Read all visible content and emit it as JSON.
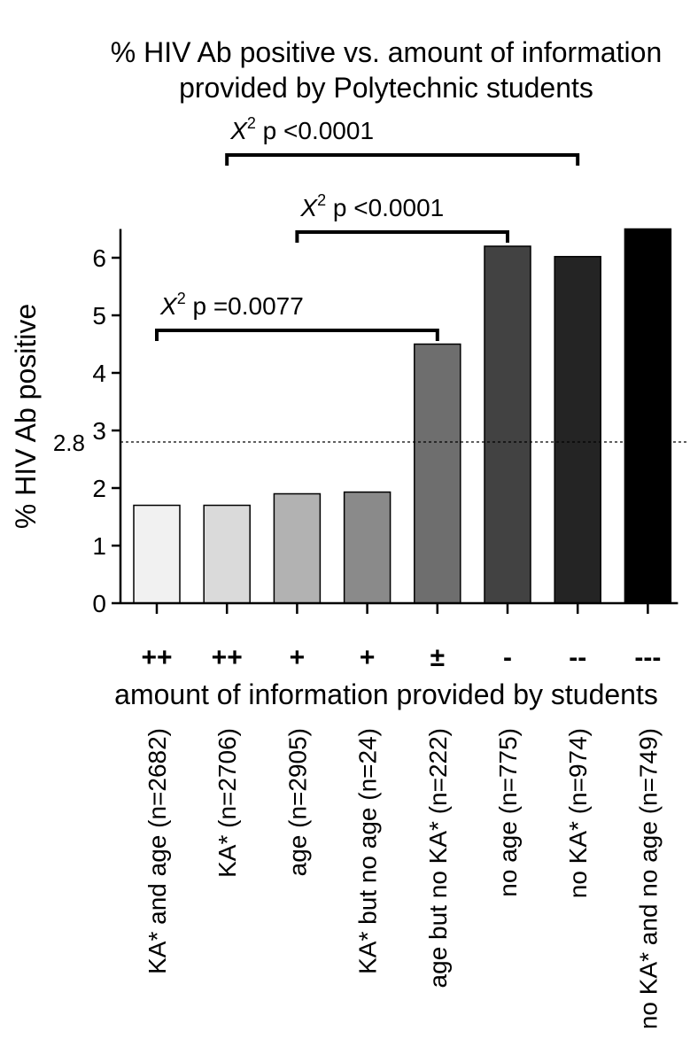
{
  "chart_data": {
    "type": "bar",
    "title_lines": [
      "% HIV Ab positive vs. amount of information",
      "provided by Polytechnic students"
    ],
    "ylabel": "% HIV Ab positive",
    "xlabel": "amount of information provided by students",
    "ylim": [
      0,
      6.5
    ],
    "yticks": [
      0,
      1,
      2,
      3,
      4,
      5,
      6
    ],
    "categories": [
      "KA* and age (n=2682)",
      "KA* (n=2706)",
      "age (n=2905)",
      "KA* but no age (n=24)",
      "age but no KA* (n=222)",
      "no age (n=775)",
      "no KA* (n=974)",
      "no KA* and no age (n=749)"
    ],
    "info_levels": [
      "++",
      "++",
      "+",
      "+",
      "±",
      "-",
      "--",
      "---"
    ],
    "values": [
      1.7,
      1.7,
      1.9,
      1.93,
      4.5,
      6.2,
      6.02,
      6.5
    ],
    "bar_colors": [
      "#f1f1f1",
      "#dadada",
      "#b2b2b2",
      "#8a8a8a",
      "#6e6e6e",
      "#424242",
      "#242424",
      "#000000"
    ],
    "reference_line": {
      "value": 2.8,
      "label": "2.8",
      "style": "dotted"
    },
    "grid": false,
    "legend": "none",
    "annotations": [
      {
        "symbol": "X",
        "superscript": "2",
        "text": " p =0.0077",
        "from_index": 0,
        "to_index": 4
      },
      {
        "symbol": "X",
        "superscript": "2",
        "text": " p <0.0001",
        "from_index": 2,
        "to_index": 5
      },
      {
        "symbol": "X",
        "superscript": "2",
        "text": " p <0.0001",
        "from_index": 1,
        "to_index": 6
      }
    ]
  }
}
